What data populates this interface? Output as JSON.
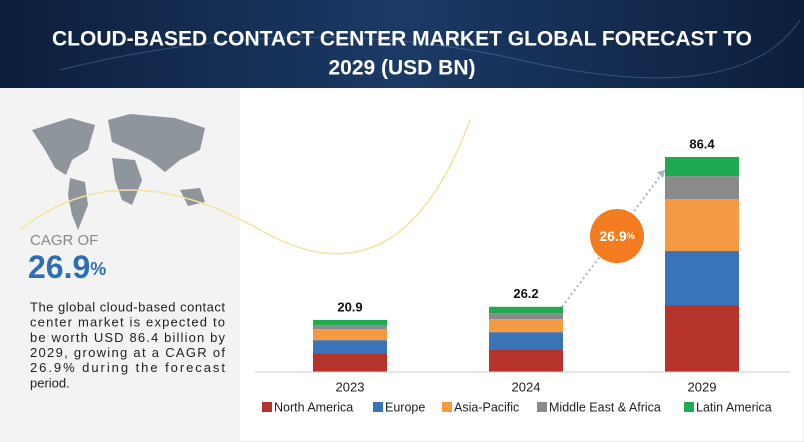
{
  "chart_data": {
    "type": "stacked_bar",
    "title": [
      "CLOUD-BASED CONTACT CENTER MARKET GLOBAL FORECAST TO",
      "2029 (USD BN)"
    ],
    "cagr_label": "CAGR OF",
    "cagr": {
      "value": "26.9",
      "unit": "%"
    },
    "description": [
      "The global cloud-based contact",
      "center market is expected to",
      "be worth USD 86.4 billion by",
      "2029, growing at a CAGR of",
      "26.9% during the forecast",
      "period."
    ],
    "categories": [
      "2023",
      "2024",
      "2029"
    ],
    "totals": [
      20.9,
      26.2,
      86.4
    ],
    "series": [
      {
        "name": "North America",
        "color": "#b5332a",
        "values": [
          7.6,
          9.2,
          26.9
        ]
      },
      {
        "name": "Europe",
        "color": "#3a74b8",
        "values": [
          5.2,
          6.8,
          21.7
        ]
      },
      {
        "name": "Asia-Pacific",
        "color": "#f39a43",
        "values": [
          4.4,
          5.2,
          20.9
        ]
      },
      {
        "name": "Middle East & Africa",
        "color": "#8a8a8a",
        "values": [
          1.6,
          2.4,
          9.2
        ]
      },
      {
        "name": "Latin America",
        "color": "#1daa52",
        "values": [
          2.1,
          2.6,
          7.7
        ]
      }
    ],
    "ylim": [
      0,
      90
    ]
  }
}
